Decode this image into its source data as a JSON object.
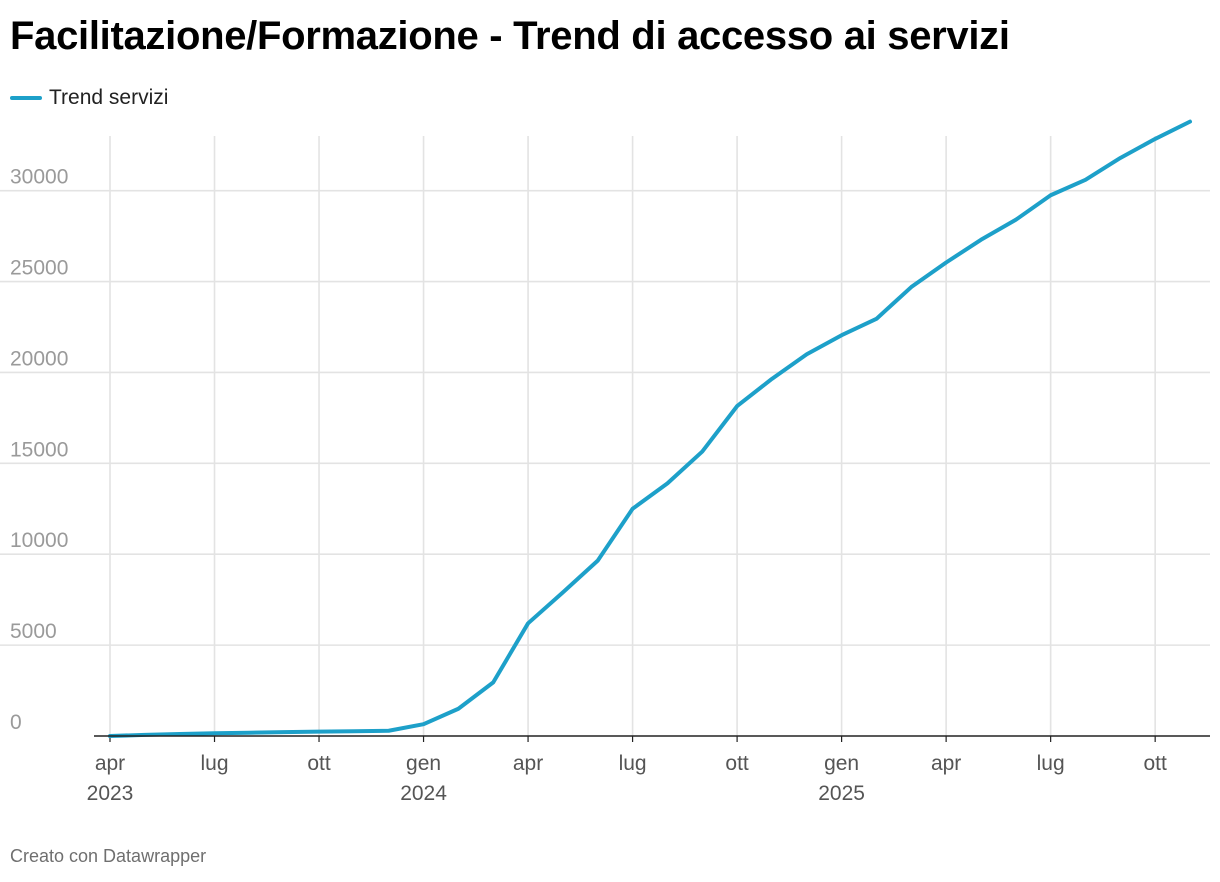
{
  "title": "Facilitazione/Formazione - Trend di accesso ai servizi",
  "footer": "Creato con Datawrapper",
  "colors": {
    "line": "#1da0c9",
    "grid": "#e3e3e3",
    "axis": "#222222",
    "tick_label": "#9a9a9a",
    "x_label": "#555555"
  },
  "chart_data": {
    "type": "line",
    "title": "Facilitazione/Formazione - Trend di accesso ai servizi",
    "xlabel": "",
    "ylabel": "",
    "ylim": [
      0,
      34000
    ],
    "yticks": [
      0,
      5000,
      10000,
      15000,
      20000,
      25000,
      30000
    ],
    "xlim": [
      0,
      31
    ],
    "xticks": [
      {
        "x": 0,
        "label": "apr",
        "year": "2023"
      },
      {
        "x": 3,
        "label": "lug",
        "year": ""
      },
      {
        "x": 6,
        "label": "ott",
        "year": ""
      },
      {
        "x": 9,
        "label": "gen",
        "year": "2024"
      },
      {
        "x": 12,
        "label": "apr",
        "year": ""
      },
      {
        "x": 15,
        "label": "lug",
        "year": ""
      },
      {
        "x": 18,
        "label": "ott",
        "year": ""
      },
      {
        "x": 21,
        "label": "gen",
        "year": "2025"
      },
      {
        "x": 24,
        "label": "apr",
        "year": ""
      },
      {
        "x": 27,
        "label": "lug",
        "year": ""
      },
      {
        "x": 30,
        "label": "ott",
        "year": ""
      }
    ],
    "legend": "top-left",
    "series": [
      {
        "name": "Trend servizi",
        "points": [
          [
            0,
            0
          ],
          [
            1,
            60
          ],
          [
            2,
            110
          ],
          [
            3,
            150
          ],
          [
            4,
            180
          ],
          [
            5,
            210
          ],
          [
            6,
            240
          ],
          [
            7,
            260
          ],
          [
            8,
            290
          ],
          [
            9,
            650
          ],
          [
            10,
            1500
          ],
          [
            11,
            2950
          ],
          [
            12,
            6200
          ],
          [
            13,
            7900
          ],
          [
            14,
            9650
          ],
          [
            15,
            12500
          ],
          [
            16,
            13900
          ],
          [
            17,
            15650
          ],
          [
            18,
            18150
          ],
          [
            19,
            19650
          ],
          [
            20,
            21000
          ],
          [
            21,
            22050
          ],
          [
            22,
            22950
          ],
          [
            23,
            24700
          ],
          [
            24,
            26050
          ],
          [
            25,
            27300
          ],
          [
            26,
            28400
          ],
          [
            27,
            29750
          ],
          [
            28,
            30600
          ],
          [
            29,
            31800
          ],
          [
            30,
            32850
          ],
          [
            31,
            33800
          ]
        ]
      }
    ]
  }
}
